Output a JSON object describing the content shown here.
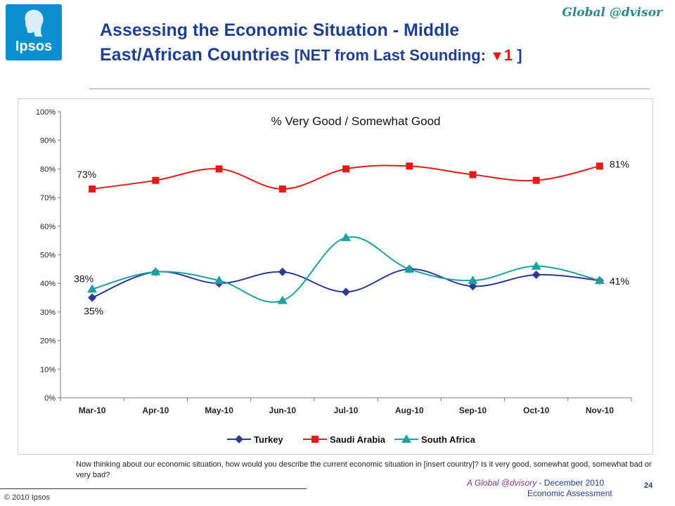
{
  "logo": {
    "text": "Ipsos"
  },
  "brand": "Global @dvisor",
  "title": {
    "line1_a": "Assessing the Economic Situation - ",
    "line1_b": "Middle",
    "line2_a": "East/African Countries ",
    "line2_b": "[NET from Last Sounding: ",
    "triangle": "▼",
    "delta": "1",
    "close": " ]"
  },
  "chart_data": {
    "type": "line",
    "title": "% Very Good / Somewhat Good",
    "categories": [
      "Mar-10",
      "Apr-10",
      "May-10",
      "Jun-10",
      "Jul-10",
      "Aug-10",
      "Sep-10",
      "Oct-10",
      "Nov-10"
    ],
    "ylim": [
      0,
      100
    ],
    "yticks": [
      "0%",
      "10%",
      "20%",
      "30%",
      "40%",
      "50%",
      "60%",
      "70%",
      "80%",
      "90%",
      "100%"
    ],
    "grid": false,
    "legend_position": "bottom",
    "series": [
      {
        "name": "Turkey",
        "color": "#2e3a8c",
        "marker": "diamond",
        "values": [
          35,
          44,
          40,
          44,
          37,
          45,
          39,
          43,
          41
        ]
      },
      {
        "name": "Saudi Arabia",
        "color": "#e31a1a",
        "marker": "square",
        "values": [
          73,
          76,
          80,
          73,
          80,
          81,
          78,
          76,
          81
        ]
      },
      {
        "name": "South Africa",
        "color": "#1fa0a0",
        "marker": "triangle",
        "values": [
          38,
          44,
          41,
          34,
          56,
          45,
          41,
          46,
          41
        ]
      }
    ],
    "annotations": [
      "73%",
      "81%",
      "38%",
      "35%",
      "41%"
    ]
  },
  "footnote": "Now thinking about our economic situation, how would you describe the current economic situation in [insert country]? Is it very good, somewhat good, somewhat bad or very bad?",
  "copyright": "© 2010 Ipsos",
  "footer": {
    "brand": "A Global @dvisory",
    "date": " - December 2010",
    "subtitle": "Economic Assessment",
    "page": "24"
  }
}
